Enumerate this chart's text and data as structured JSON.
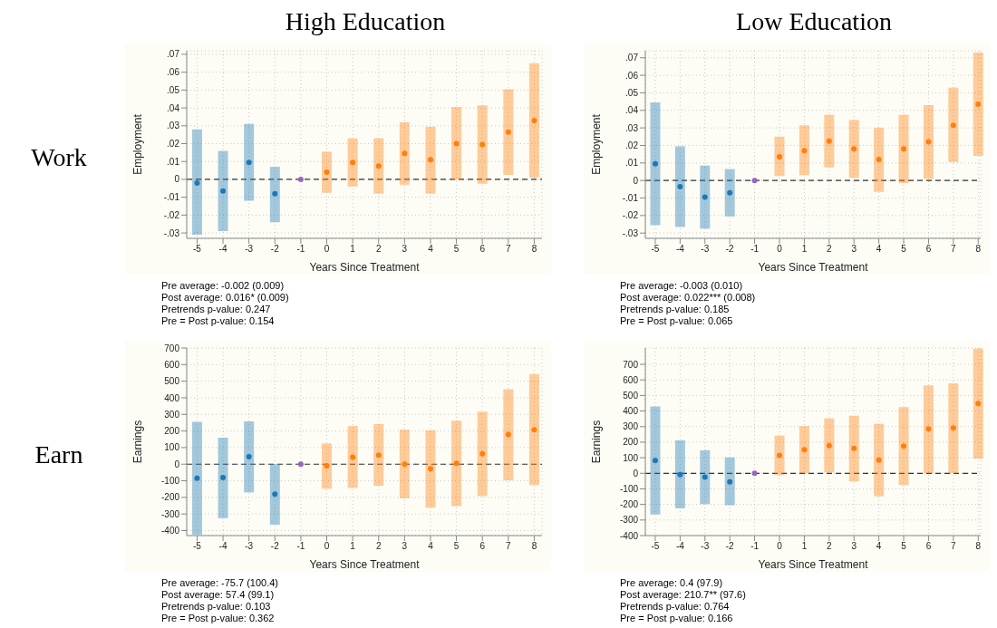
{
  "chart_data": [
    {
      "type": "scatter",
      "title": "High Education",
      "subtitle": "Work",
      "xlabel": "Years Since Treatment",
      "ylabel": "Employment",
      "xlim": [
        -5.4,
        8.3
      ],
      "xticks": [
        -5,
        -4,
        -3,
        -2,
        -1,
        0,
        1,
        2,
        3,
        4,
        5,
        6,
        7,
        8
      ],
      "ylim": [
        -0.033,
        0.072
      ],
      "yticks": [
        {
          "value": -0.03,
          "label": "-.03"
        },
        {
          "value": -0.02,
          "label": "-.02"
        },
        {
          "value": -0.01,
          "label": "-.01"
        },
        0,
        {
          "value": 0.01,
          "label": ".01"
        },
        {
          "value": 0.02,
          "label": ".02"
        },
        {
          "value": 0.03,
          "label": ".03"
        },
        {
          "value": 0.04,
          "label": ".04"
        },
        {
          "value": 0.05,
          "label": ".05"
        },
        {
          "value": 0.06,
          "label": ".06"
        },
        {
          "value": 0.07,
          "label": ".07"
        }
      ],
      "grid": true,
      "marker": "circle",
      "legend": false,
      "series": [
        {
          "color": "#1f77b4",
          "x": [
            -5,
            -4,
            -3,
            -2
          ],
          "values": [
            -0.002,
            -0.0065,
            0.0095,
            -0.008
          ],
          "errors": [
            [
              -0.031,
              0.028
            ],
            [
              -0.029,
              0.016
            ],
            [
              -0.012,
              0.031
            ],
            [
              -0.024,
              0.007
            ]
          ]
        },
        {
          "color": "#9467bd",
          "x": [
            -1
          ],
          "values": [
            0
          ]
        },
        {
          "color": "#ff7f0e",
          "x": [
            0,
            1,
            2,
            3,
            4,
            5,
            6,
            7,
            8
          ],
          "values": [
            0.004,
            0.0095,
            0.0075,
            0.0145,
            0.011,
            0.02,
            0.0195,
            0.0265,
            0.033
          ],
          "errors": [
            [
              -0.0075,
              0.0155
            ],
            [
              -0.004,
              0.023
            ],
            [
              -0.008,
              0.023
            ],
            [
              -0.003,
              0.032
            ],
            [
              -0.008,
              0.0295
            ],
            [
              0,
              0.0405
            ],
            [
              -0.0025,
              0.0415
            ],
            [
              0.0025,
              0.0505
            ],
            [
              0.001,
              0.065
            ]
          ]
        }
      ],
      "ref_lines": [
        {
          "axis": "y",
          "value": 0,
          "color": "#333333",
          "line_style": "dashed"
        }
      ],
      "annotations": [
        "Pre average: -0.002 (0.009)",
        "Post average: 0.016* (0.009)",
        "Pretrends p-value: 0.247",
        "Pre = Post p-value: 0.154"
      ]
    },
    {
      "type": "scatter",
      "title": "Low Education",
      "xlabel": "Years Since Treatment",
      "ylabel": "Employment",
      "xlim": [
        -5.4,
        8.1
      ],
      "xticks": [
        -5,
        -4,
        -3,
        -2,
        -1,
        0,
        1,
        2,
        3,
        4,
        5,
        6,
        7,
        8
      ],
      "ylim": [
        -0.033,
        0.074
      ],
      "yticks": [
        {
          "value": -0.03,
          "label": "-.03"
        },
        {
          "value": -0.02,
          "label": "-.02"
        },
        {
          "value": -0.01,
          "label": "-.01"
        },
        0,
        {
          "value": 0.01,
          "label": ".01"
        },
        {
          "value": 0.02,
          "label": ".02"
        },
        {
          "value": 0.03,
          "label": ".03"
        },
        {
          "value": 0.04,
          "label": ".04"
        },
        {
          "value": 0.05,
          "label": ".05"
        },
        {
          "value": 0.06,
          "label": ".06"
        },
        {
          "value": 0.07,
          "label": ".07"
        }
      ],
      "grid": true,
      "marker": "circle",
      "legend": false,
      "series": [
        {
          "color": "#1f77b4",
          "x": [
            -5,
            -4,
            -3,
            -2
          ],
          "values": [
            0.0095,
            -0.0035,
            -0.0095,
            -0.007
          ],
          "errors": [
            [
              -0.0255,
              0.0445
            ],
            [
              -0.0265,
              0.0195
            ],
            [
              -0.0275,
              0.0085
            ],
            [
              -0.0205,
              0.0065
            ]
          ]
        },
        {
          "color": "#9467bd",
          "x": [
            -1
          ],
          "values": [
            0
          ]
        },
        {
          "color": "#ff7f0e",
          "x": [
            0,
            1,
            2,
            3,
            4,
            5,
            6,
            7,
            8
          ],
          "values": [
            0.0135,
            0.017,
            0.0225,
            0.018,
            0.012,
            0.018,
            0.022,
            0.0315,
            0.0435
          ],
          "errors": [
            [
              0.0025,
              0.025
            ],
            [
              0.003,
              0.0315
            ],
            [
              0.0075,
              0.0375
            ],
            [
              0.0015,
              0.0345
            ],
            [
              -0.0065,
              0.03
            ],
            [
              -0.0015,
              0.0375
            ],
            [
              0.001,
              0.043
            ],
            [
              0.0105,
              0.053
            ],
            [
              0.014,
              0.073
            ]
          ]
        }
      ],
      "ref_lines": [
        {
          "axis": "y",
          "value": 0,
          "color": "#333333",
          "line_style": "dashed"
        }
      ],
      "annotations": [
        "Pre average: -0.003 (0.010)",
        "Post average: 0.022*** (0.008)",
        "Pretrends p-value: 0.185",
        "Pre = Post p-value: 0.065"
      ]
    },
    {
      "type": "scatter",
      "subtitle": "Earn",
      "xlabel": "Years Since Treatment",
      "ylabel": "Earnings",
      "xlim": [
        -5.4,
        8.3
      ],
      "xticks": [
        -5,
        -4,
        -3,
        -2,
        -1,
        0,
        1,
        2,
        3,
        4,
        5,
        6,
        7,
        8
      ],
      "ylim": [
        -430,
        700
      ],
      "yticks": [
        -400,
        -300,
        -200,
        -100,
        0,
        100,
        200,
        300,
        400,
        500,
        600,
        700
      ],
      "grid": true,
      "marker": "circle",
      "legend": false,
      "series": [
        {
          "color": "#1f77b4",
          "x": [
            -5,
            -4,
            -3,
            -2
          ],
          "values": [
            -85,
            -80,
            45,
            -180
          ],
          "errors": [
            [
              -425,
              255
            ],
            [
              -325,
              160
            ],
            [
              -170,
              258
            ],
            [
              -365,
              0
            ]
          ]
        },
        {
          "color": "#9467bd",
          "x": [
            -1
          ],
          "values": [
            0
          ]
        },
        {
          "color": "#ff7f0e",
          "x": [
            0,
            1,
            2,
            3,
            4,
            5,
            6,
            7,
            8
          ],
          "values": [
            -10,
            42,
            55,
            0,
            -28,
            5,
            62,
            178,
            208
          ],
          "errors": [
            [
              -148,
              125
            ],
            [
              -143,
              230
            ],
            [
              -130,
              242
            ],
            [
              -205,
              208
            ],
            [
              -262,
              205
            ],
            [
              -252,
              262
            ],
            [
              -193,
              317
            ],
            [
              -97,
              452
            ],
            [
              -125,
              543
            ]
          ]
        }
      ],
      "ref_lines": [
        {
          "axis": "y",
          "value": 0,
          "color": "#333333",
          "line_style": "dashed"
        }
      ],
      "annotations": [
        "Pre average: -75.7 (100.4)",
        "Post average: 57.4 (99.1)",
        "Pretrends p-value: 0.103",
        "Pre = Post p-value: 0.362"
      ]
    },
    {
      "type": "scatter",
      "xlabel": "Years Since Treatment",
      "ylabel": "Earnings",
      "xlim": [
        -5.4,
        8.1
      ],
      "xticks": [
        -5,
        -4,
        -3,
        -2,
        -1,
        0,
        1,
        2,
        3,
        4,
        5,
        6,
        7,
        8
      ],
      "ylim": [
        -400,
        805
      ],
      "yticks": [
        -400,
        -300,
        -200,
        -100,
        0,
        100,
        200,
        300,
        400,
        500,
        600,
        700
      ],
      "grid": true,
      "marker": "circle",
      "legend": false,
      "series": [
        {
          "color": "#1f77b4",
          "x": [
            -5,
            -4,
            -3,
            -2
          ],
          "values": [
            82,
            -8,
            -25,
            -55
          ],
          "errors": [
            [
              -265,
              430
            ],
            [
              -225,
              212
            ],
            [
              -198,
              148
            ],
            [
              -205,
              102
            ]
          ]
        },
        {
          "color": "#9467bd",
          "x": [
            -1
          ],
          "values": [
            0
          ]
        },
        {
          "color": "#ff7f0e",
          "x": [
            0,
            1,
            2,
            3,
            4,
            5,
            6,
            7,
            8
          ],
          "values": [
            115,
            152,
            178,
            160,
            85,
            175,
            285,
            292,
            448
          ],
          "errors": [
            [
              -12,
              242
            ],
            [
              0,
              303
            ],
            [
              5,
              353
            ],
            [
              -52,
              370
            ],
            [
              -148,
              318
            ],
            [
              -75,
              425
            ],
            [
              0,
              565
            ],
            [
              0,
              578
            ],
            [
              95,
              800
            ]
          ]
        }
      ],
      "ref_lines": [
        {
          "axis": "y",
          "value": 0,
          "color": "#333333",
          "line_style": "dashed"
        }
      ],
      "annotations": [
        "Pre average: 0.4 (97.9)",
        "Post average: 210.7** (97.6)",
        "Pretrends p-value: 0.764",
        "Pre = Post p-value: 0.166"
      ]
    }
  ]
}
